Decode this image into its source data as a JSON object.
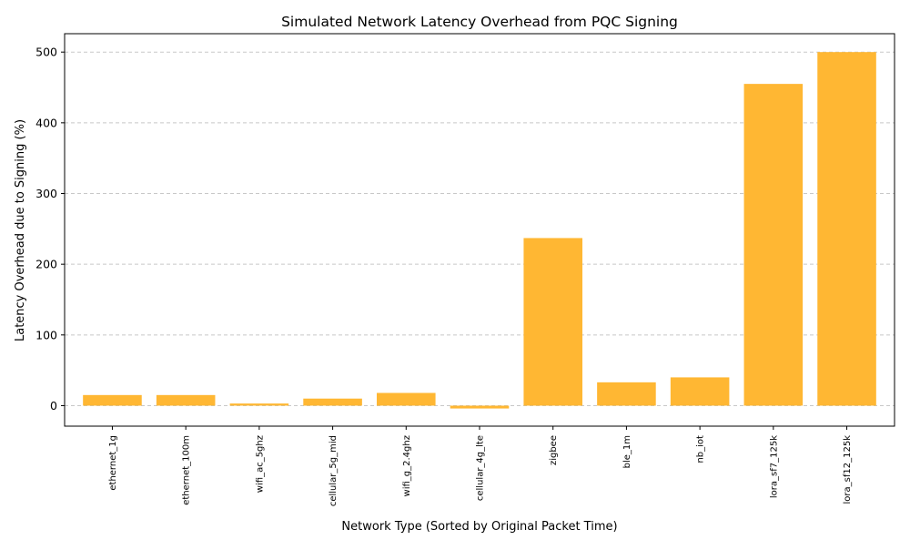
{
  "chart_data": {
    "type": "bar",
    "title": "Simulated Network Latency Overhead from PQC Signing",
    "xlabel": "Network Type (Sorted by Original Packet Time)",
    "ylabel": "Latency Overhead due to Signing (%)",
    "categories": [
      "ethernet_1g",
      "ethernet_100m",
      "wifi_ac_5ghz",
      "cellular_5g_mid",
      "wifi_g_2.4ghz",
      "cellular_4g_lte",
      "zigbee",
      "ble_1m",
      "nb_iot",
      "lora_sf7_125k",
      "lora_sf12_125k"
    ],
    "values": [
      15,
      15,
      3,
      10,
      18,
      -4,
      237,
      33,
      40,
      455,
      500
    ],
    "ylim": [
      -29,
      526
    ],
    "yticks": [
      0,
      100,
      200,
      300,
      400,
      500
    ],
    "grid": "y-dashed",
    "bar_color": "#FFB733",
    "grid_color": "#C8C8C8"
  }
}
